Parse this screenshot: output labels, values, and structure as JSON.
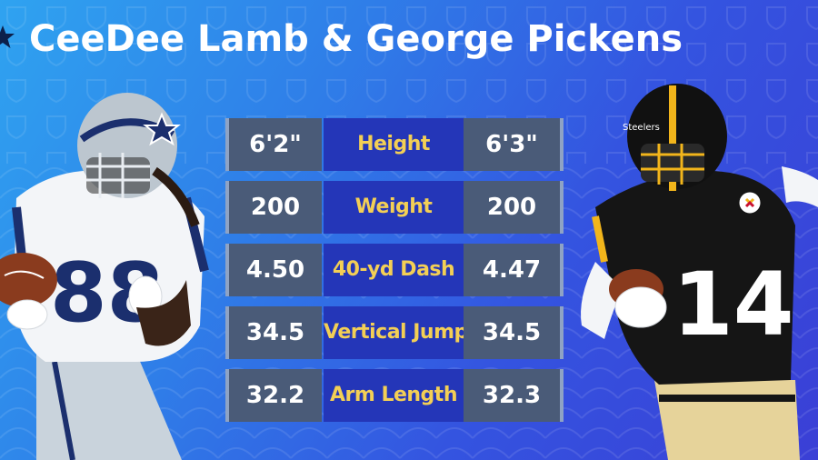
{
  "title": "CeeDee Lamb & George Pickens",
  "left_player": {
    "jersey_number": "88"
  },
  "right_player": {
    "jersey_number": "14"
  },
  "stats": [
    {
      "label": "Height",
      "left": "6'2\"",
      "right": "6'3\""
    },
    {
      "label": "Weight",
      "left": "200",
      "right": "200"
    },
    {
      "label": "40-yd Dash",
      "left": "4.50",
      "right": "4.47"
    },
    {
      "label": "Vertical Jump",
      "left": "34.5",
      "right": "34.5"
    },
    {
      "label": "Arm Length",
      "left": "32.2",
      "right": "32.3"
    }
  ],
  "colors": {
    "background_start": "#2fa3f0",
    "background_end": "#3a3fd6",
    "value_cell": "#4a5b78",
    "label_cell": "#2436b8",
    "label_text": "#f3cf55",
    "dallas_blue": "#1b2f6e",
    "steelers_gold": "#f2b51b",
    "steelers_black": "#151515"
  },
  "icons": [
    "nfl-shield-pattern",
    "dallas-star-icon",
    "steelers-logo-icon"
  ]
}
